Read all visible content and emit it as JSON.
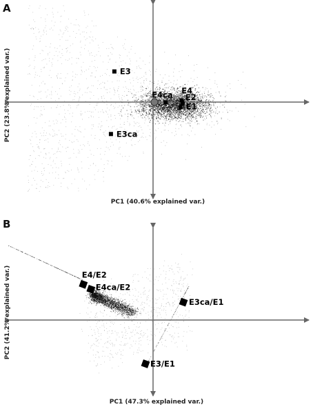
{
  "chart_data": [
    {
      "panel": "A",
      "type": "scatter",
      "xlabel": "PC1 (40.6% explained var.)",
      "ylabel": "PC2 (23.8% explained var.)",
      "xlim": [
        -5,
        5
      ],
      "ylim": [
        -3.2,
        3.2
      ],
      "grid": false,
      "series": [
        {
          "points": [
            {
              "label": "E3",
              "x": -1.7,
              "y": 1.2
            },
            {
              "label": "E4",
              "x": 1.25,
              "y": 0.07
            },
            {
              "label": "E4ca",
              "x": 0.55,
              "y": -0.01
            },
            {
              "label": "E2",
              "x": 1.3,
              "y": -0.05
            },
            {
              "label": "E1",
              "x": 1.2,
              "y": -0.2
            },
            {
              "label": "E3ca",
              "x": -1.85,
              "y": -1.25
            }
          ]
        }
      ]
    },
    {
      "panel": "B",
      "type": "scatter",
      "xlabel": "PC1 (47.3% explained var.)",
      "ylabel": "PC2 (41.2% explained var.)",
      "xlim": [
        -5,
        5
      ],
      "ylim": [
        -3.2,
        3.2
      ],
      "grid": false,
      "series": [
        {
          "points": [
            {
              "label": "E4/E2",
              "x": -2.3,
              "y": 1.1
            },
            {
              "label": "E4ca/E2",
              "x": -2.05,
              "y": 0.95
            },
            {
              "label": "E3ca/E1",
              "x": 1.0,
              "y": 0.55
            },
            {
              "label": "E3/E1",
              "x": -0.25,
              "y": -1.35
            }
          ]
        }
      ]
    }
  ]
}
